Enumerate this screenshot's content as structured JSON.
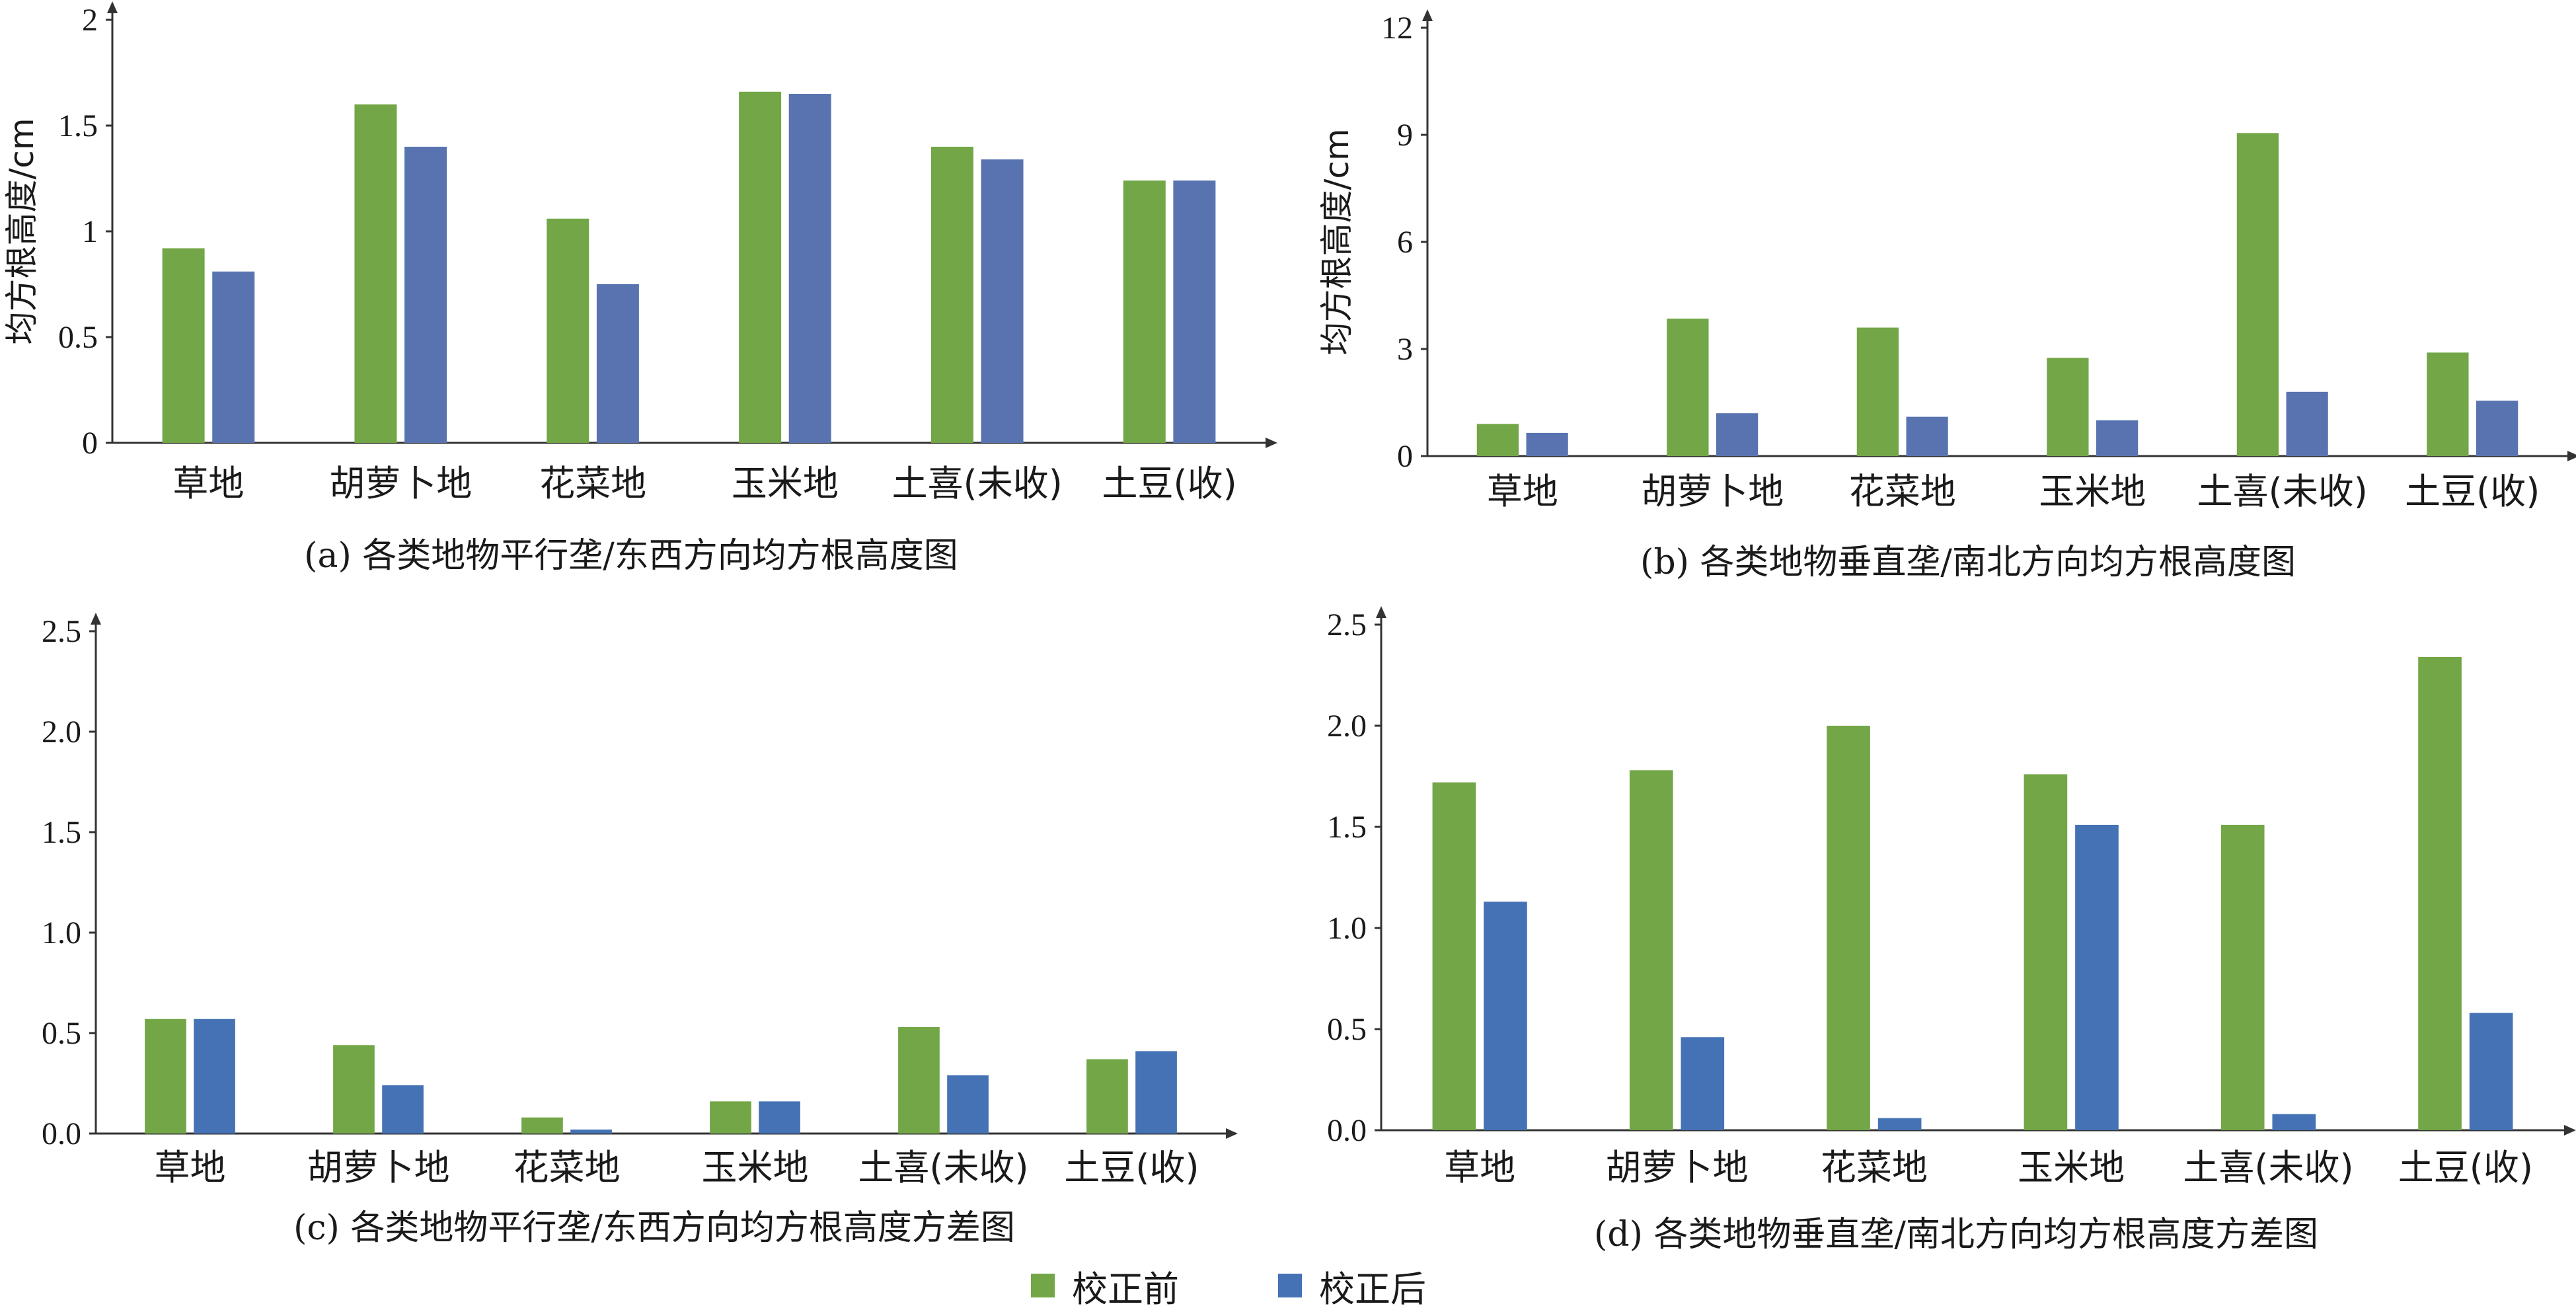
{
  "colors": {
    "before": "#72a646",
    "after": "#5873b0",
    "after_alt": "#4472b4"
  },
  "legend": {
    "before": "校正前",
    "after": "校正后"
  },
  "chart_data": [
    {
      "type": "bar",
      "panel": "a",
      "caption": "(a) 各类地物平行垄/东西方向均方根高度图",
      "ylabel": "均方根高度/cm",
      "categories": [
        "草地",
        "胡萝卜地",
        "花菜地",
        "玉米地",
        "土喜(未收)",
        "土豆(收)"
      ],
      "yticks": [
        "0",
        "0.5",
        "1",
        "1.5",
        "2"
      ],
      "ylim": [
        0,
        2
      ],
      "series": [
        {
          "name": "校正前",
          "values": [
            0.92,
            1.6,
            1.06,
            1.66,
            1.4,
            1.24
          ]
        },
        {
          "name": "校正后",
          "values": [
            0.81,
            1.4,
            0.75,
            1.65,
            1.34,
            1.24
          ]
        }
      ]
    },
    {
      "type": "bar",
      "panel": "b",
      "caption": "(b) 各类地物垂直垄/南北方向均方根高度图",
      "ylabel": "均方根高度/cm",
      "categories": [
        "草地",
        "胡萝卜地",
        "花菜地",
        "玉米地",
        "土喜(未收)",
        "土豆(收)"
      ],
      "yticks": [
        "0",
        "3",
        "6",
        "9",
        "12"
      ],
      "ylim": [
        0,
        12
      ],
      "series": [
        {
          "name": "校正前",
          "values": [
            0.9,
            3.85,
            3.6,
            2.75,
            9.05,
            2.9
          ]
        },
        {
          "name": "校正后",
          "values": [
            0.65,
            1.2,
            1.1,
            1.0,
            1.8,
            1.55
          ]
        }
      ]
    },
    {
      "type": "bar",
      "panel": "c",
      "caption": "(c) 各类地物平行垄/东西方向均方根高度方差图",
      "ylabel": "",
      "categories": [
        "草地",
        "胡萝卜地",
        "花菜地",
        "玉米地",
        "土喜(未收)",
        "土豆(收)"
      ],
      "yticks": [
        "0.0",
        "0.5",
        "1.0",
        "1.5",
        "2.0",
        "2.5"
      ],
      "ylim": [
        0,
        2.5
      ],
      "series": [
        {
          "name": "校正前",
          "values": [
            0.57,
            0.44,
            0.08,
            0.16,
            0.53,
            0.37
          ]
        },
        {
          "name": "校正后",
          "values": [
            0.57,
            0.24,
            0.02,
            0.16,
            0.29,
            0.41
          ]
        }
      ]
    },
    {
      "type": "bar",
      "panel": "d",
      "caption": "(d) 各类地物垂直垄/南北方向均方根高度方差图",
      "ylabel": "",
      "categories": [
        "草地",
        "胡萝卜地",
        "花菜地",
        "玉米地",
        "土喜(未收)",
        "土豆(收)"
      ],
      "yticks": [
        "0.0",
        "0.5",
        "1.0",
        "1.5",
        "2.0",
        "2.5"
      ],
      "ylim": [
        0,
        2.5
      ],
      "series": [
        {
          "name": "校正前",
          "values": [
            1.72,
            1.78,
            2.0,
            1.76,
            1.51,
            2.34
          ]
        },
        {
          "name": "校正后",
          "values": [
            1.13,
            0.46,
            0.06,
            1.51,
            0.08,
            0.58
          ]
        }
      ]
    }
  ]
}
